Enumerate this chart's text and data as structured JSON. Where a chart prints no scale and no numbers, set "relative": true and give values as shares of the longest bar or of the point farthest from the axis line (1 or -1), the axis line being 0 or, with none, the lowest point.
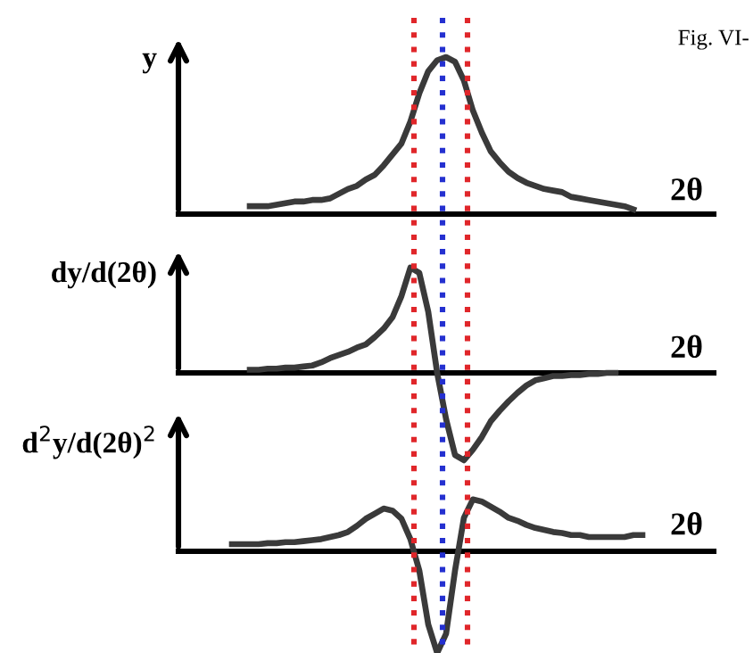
{
  "chart_data": [
    {
      "type": "line",
      "relative": true,
      "ylabel": "y",
      "xlabel": "2θ",
      "tick_labels": false,
      "marker": "none",
      "line_style": "solid",
      "annotations": [
        "Fig. VI-"
      ],
      "categories": [
        null,
        null,
        null,
        null,
        null,
        null,
        null,
        null,
        null,
        null,
        null,
        null,
        null,
        null,
        null,
        null,
        null,
        null,
        null,
        null,
        null,
        null,
        null,
        null,
        null,
        null,
        null,
        null,
        null,
        null,
        null,
        null,
        null,
        null,
        null,
        null,
        null,
        null,
        null,
        null,
        null,
        null,
        null,
        null,
        null,
        null,
        null,
        null,
        null,
        null,
        null,
        null,
        null,
        null,
        null,
        null,
        null,
        null,
        null,
        null,
        null
      ],
      "series": [
        {
          "color": "#3a3a3a",
          "values": [
            null,
            null,
            null,
            null,
            null,
            null,
            null,
            null,
            0.05,
            0.05,
            0.05,
            0.06,
            0.07,
            0.08,
            0.08,
            0.09,
            0.09,
            0.1,
            0.13,
            0.16,
            0.18,
            0.22,
            0.25,
            0.31,
            0.38,
            0.45,
            0.59,
            0.77,
            0.91,
            0.98,
            1.0,
            0.97,
            0.85,
            0.66,
            0.52,
            0.4,
            0.33,
            0.27,
            0.23,
            0.2,
            0.18,
            0.16,
            0.15,
            0.14,
            0.11,
            0.1,
            0.09,
            0.08,
            0.07,
            0.06,
            0.05,
            0.03,
            null,
            null,
            null,
            null,
            null,
            null,
            null,
            null,
            null
          ]
        }
      ]
    },
    {
      "type": "line",
      "relative": true,
      "ylabel": "dy/d(2θ)",
      "xlabel": "2θ",
      "tick_labels": false,
      "marker": "none",
      "line_style": "solid",
      "categories": [
        null,
        null,
        null,
        null,
        null,
        null,
        null,
        null,
        null,
        null,
        null,
        null,
        null,
        null,
        null,
        null,
        null,
        null,
        null,
        null,
        null,
        null,
        null,
        null,
        null,
        null,
        null,
        null,
        null,
        null,
        null,
        null,
        null,
        null,
        null,
        null,
        null,
        null,
        null,
        null,
        null,
        null,
        null,
        null,
        null,
        null,
        null,
        null,
        null,
        null,
        null,
        null,
        null,
        null,
        null,
        null,
        null,
        null,
        null,
        null,
        null
      ],
      "series": [
        {
          "color": "#3a3a3a",
          "values": [
            null,
            null,
            null,
            null,
            null,
            null,
            null,
            null,
            0.03,
            0.03,
            0.04,
            0.04,
            0.05,
            0.05,
            0.06,
            0.07,
            0.1,
            0.14,
            0.17,
            0.2,
            0.24,
            0.27,
            0.34,
            0.42,
            0.53,
            0.73,
            1.0,
            0.95,
            0.58,
            0,
            -0.44,
            -0.78,
            -0.83,
            -0.73,
            -0.61,
            -0.46,
            -0.36,
            -0.27,
            -0.19,
            -0.12,
            -0.07,
            -0.05,
            -0.03,
            -0.03,
            -0.02,
            -0.02,
            -0.01,
            -0.01,
            0.0,
            0.0,
            null,
            null,
            null,
            null,
            null,
            null,
            null,
            null,
            null,
            null,
            null
          ]
        }
      ]
    },
    {
      "type": "line",
      "relative": true,
      "ylabel": "d$^{2}$y/d(2θ)$^{2}$",
      "xlabel": "2θ",
      "tick_labels": false,
      "marker": "none",
      "line_style": "solid",
      "categories": [
        null,
        null,
        null,
        null,
        null,
        null,
        null,
        null,
        null,
        null,
        null,
        null,
        null,
        null,
        null,
        null,
        null,
        null,
        null,
        null,
        null,
        null,
        null,
        null,
        null,
        null,
        null,
        null,
        null,
        null,
        null,
        null,
        null,
        null,
        null,
        null,
        null,
        null,
        null,
        null,
        null,
        null,
        null,
        null,
        null,
        null,
        null,
        null,
        null,
        null,
        null,
        null,
        null,
        null,
        null,
        null,
        null,
        null,
        null,
        null,
        null
      ],
      "series": [
        {
          "color": "#3a3a3a",
          "values": [
            null,
            null,
            null,
            null,
            null,
            null,
            0.07,
            0.07,
            0.07,
            0.07,
            0.08,
            0.08,
            0.09,
            0.09,
            0.1,
            0.11,
            0.12,
            0.14,
            0.16,
            0.19,
            0.25,
            0.32,
            0.37,
            0.42,
            0.4,
            0.32,
            0.12,
            -0.19,
            -0.72,
            -1.0,
            -0.81,
            -0.19,
            0.33,
            0.51,
            0.49,
            0.44,
            0.39,
            0.33,
            0.3,
            0.26,
            0.23,
            0.21,
            0.19,
            0.18,
            0.16,
            0.16,
            0.14,
            0.14,
            0.14,
            0.14,
            0.14,
            0.16,
            0.16,
            null,
            null,
            null,
            null,
            null,
            null,
            null,
            null
          ]
        }
      ]
    }
  ]
}
